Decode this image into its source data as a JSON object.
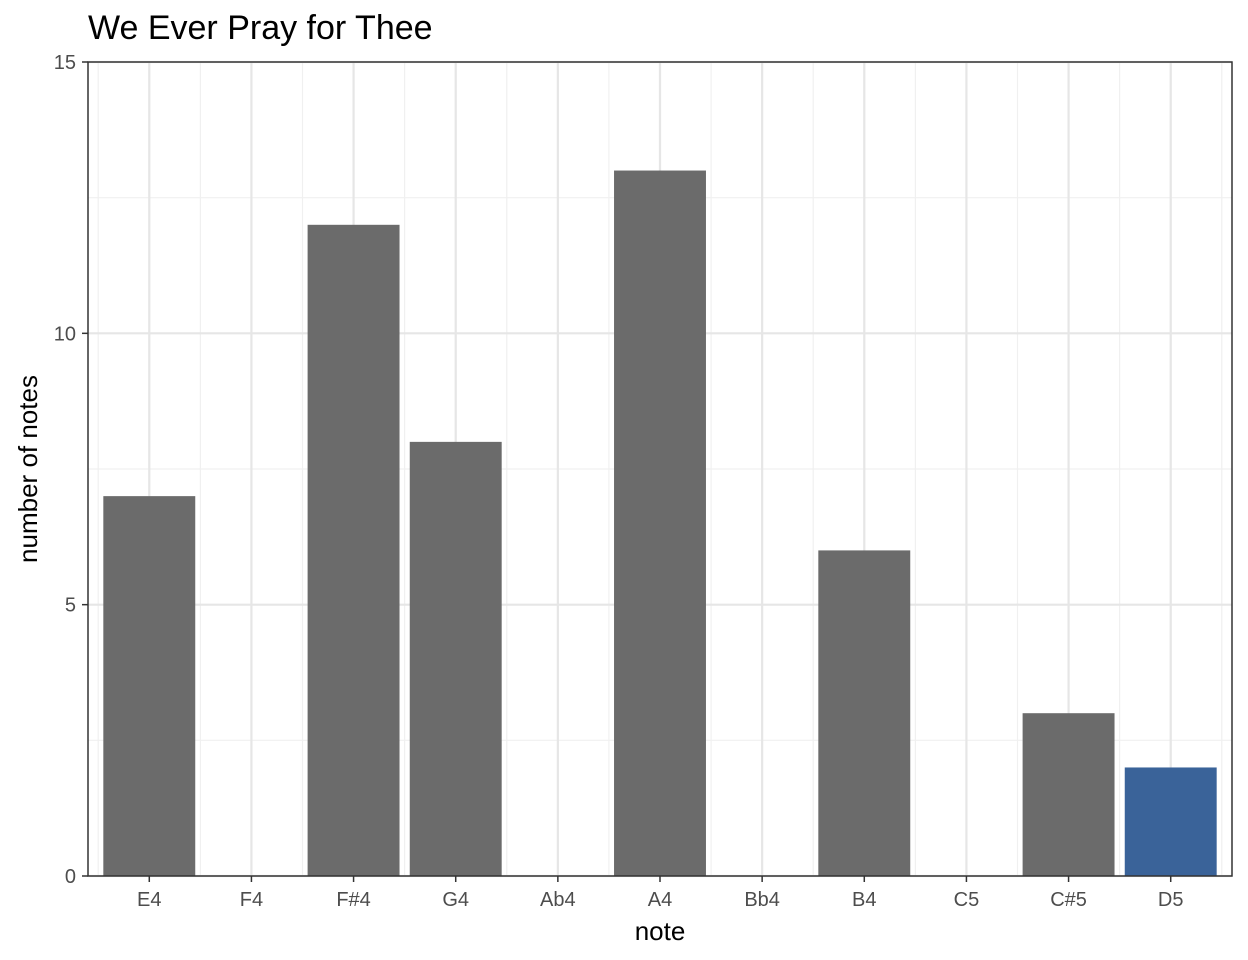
{
  "chart_data": {
    "type": "bar",
    "title": "We Ever Pray for Thee",
    "xlabel": "note",
    "ylabel": "number of notes",
    "categories": [
      "E4",
      "F4",
      "F#4",
      "G4",
      "Ab4",
      "A4",
      "Bb4",
      "B4",
      "C5",
      "C#5",
      "D5"
    ],
    "values": [
      7,
      0,
      12,
      8,
      0,
      13,
      0,
      6,
      0,
      3,
      2
    ],
    "highlight_category": "D5",
    "colors": {
      "default": "#6b6b6b",
      "highlight": "#3a6399"
    },
    "ylim": [
      0,
      15
    ],
    "yticks": [
      0,
      5,
      10,
      15
    ],
    "grid": true,
    "legend": "none"
  }
}
